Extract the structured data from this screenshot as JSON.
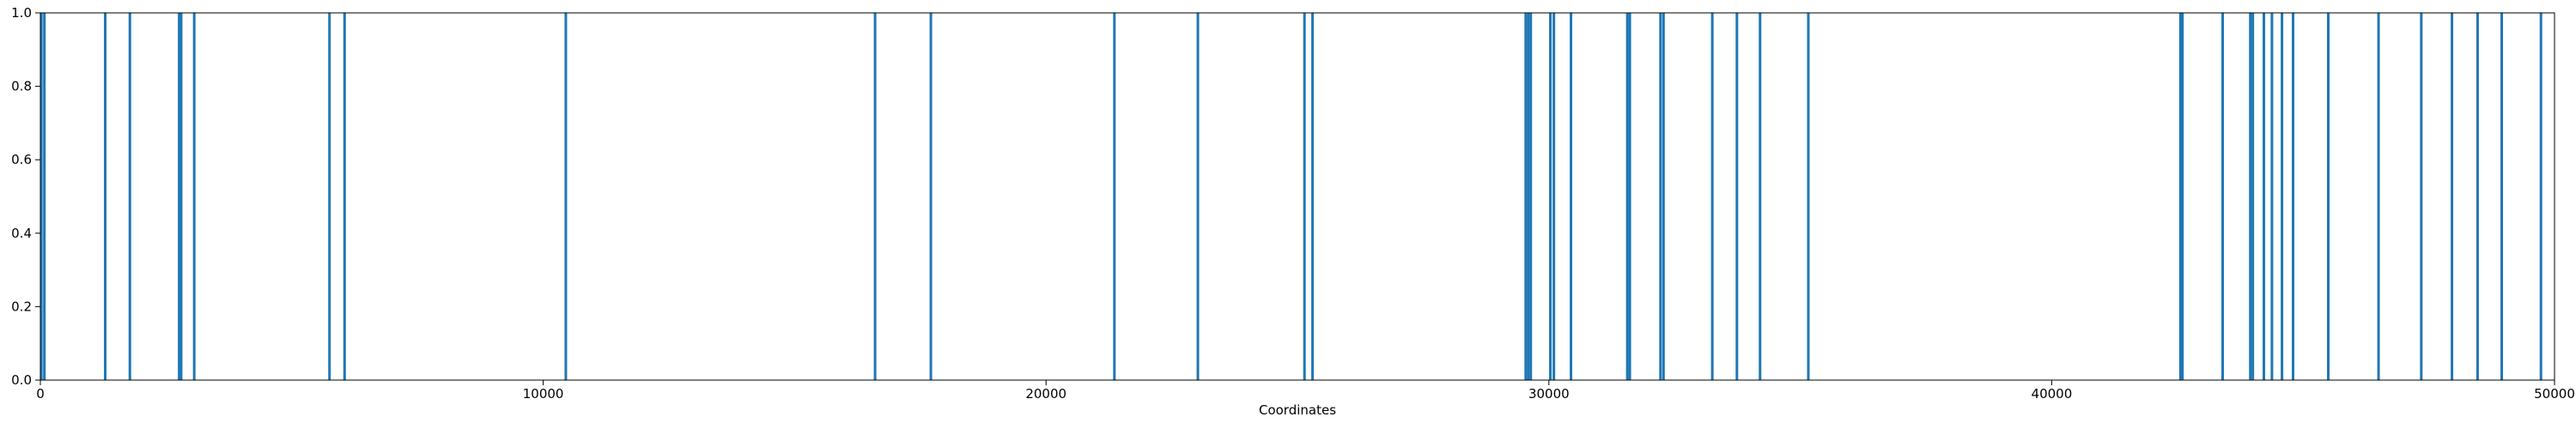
{
  "chart_data": {
    "type": "bar",
    "title": "",
    "xlabel": "Coordinates",
    "ylabel": "",
    "xlim": [
      0,
      50000
    ],
    "ylim": [
      0.0,
      1.0
    ],
    "grid": false,
    "x_ticks": [
      0,
      10000,
      20000,
      30000,
      40000,
      50000
    ],
    "x_tick_labels": [
      "0",
      "10000",
      "20000",
      "30000",
      "40000",
      "50000"
    ],
    "y_ticks": [
      0.0,
      0.2,
      0.4,
      0.6,
      0.8,
      1.0
    ],
    "y_tick_labels": [
      "0.0",
      "0.2",
      "0.4",
      "0.6",
      "0.8",
      "1.0"
    ],
    "bar_color": "#1f77b4",
    "series": [
      {
        "x": [
          20,
          80,
          1290,
          1780,
          2760,
          2800,
          3060,
          5750,
          6050,
          10450,
          16600,
          17710,
          21360,
          23020,
          25140,
          25300,
          29540,
          29590,
          29640,
          30030,
          30100,
          30440,
          31560,
          31610,
          32220,
          32280,
          33250,
          33740,
          34200,
          35160,
          42560,
          42600,
          43400,
          43950,
          44000,
          44220,
          44380,
          44580,
          44800,
          45500,
          46500,
          47350,
          47960,
          48470,
          48950,
          49730
        ],
        "values": [
          1,
          1,
          1,
          1,
          1,
          1,
          1,
          1,
          1,
          1,
          1,
          1,
          1,
          1,
          1,
          1,
          1,
          1,
          1,
          1,
          1,
          1,
          1,
          1,
          1,
          1,
          1,
          1,
          1,
          1,
          1,
          1,
          1,
          1,
          1,
          1,
          1,
          1,
          1,
          1,
          1,
          1,
          1,
          1,
          1,
          1
        ]
      }
    ]
  }
}
